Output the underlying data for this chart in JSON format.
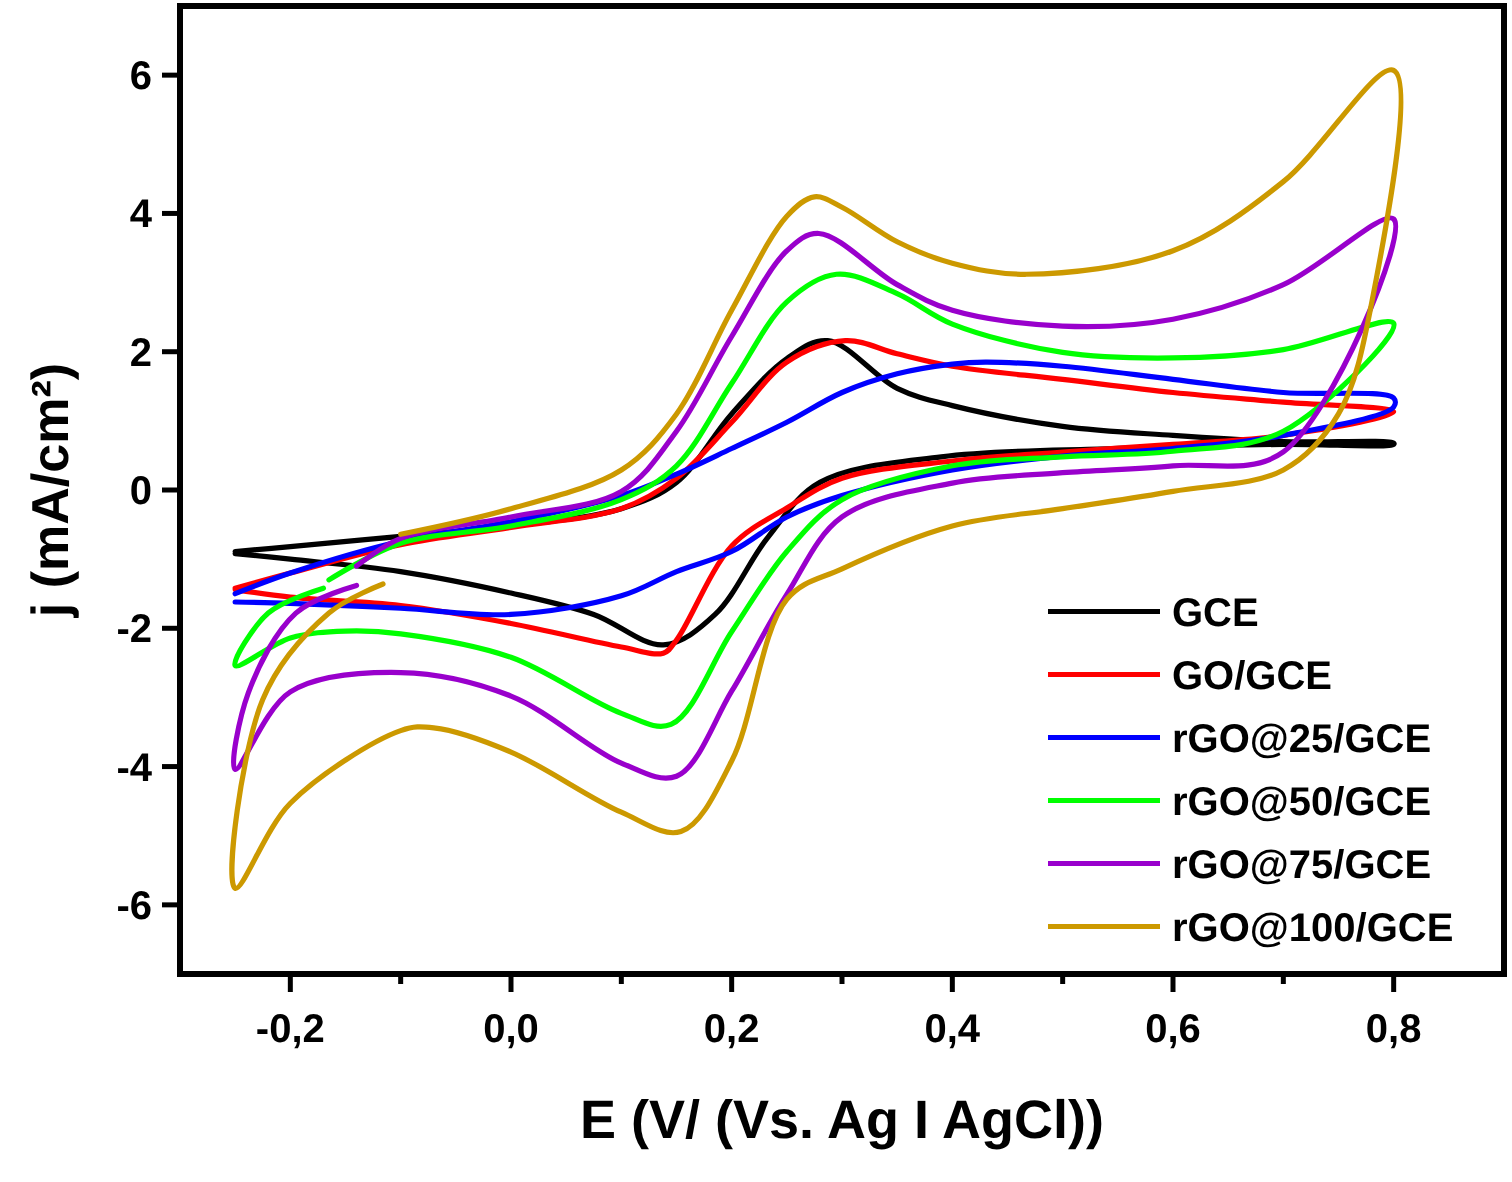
{
  "chart_data": {
    "type": "line",
    "xlabel": "E (V/ (Vs. Ag I AgCl))",
    "ylabel": "j (mA/cm²)",
    "xlim": [
      -0.3,
      0.9
    ],
    "ylim": [
      -7,
      7
    ],
    "xticks": [
      {
        "value": -0.2,
        "label": "-0,2"
      },
      {
        "value": -0.1,
        "label": null
      },
      {
        "value": 0,
        "label": "0,0"
      },
      {
        "value": 0.1,
        "label": null
      },
      {
        "value": 0.2,
        "label": "0,2"
      },
      {
        "value": 0.3,
        "label": null
      },
      {
        "value": 0.4,
        "label": "0,4"
      },
      {
        "value": 0.5,
        "label": null
      },
      {
        "value": 0.6,
        "label": "0,6"
      },
      {
        "value": 0.7,
        "label": null
      },
      {
        "value": 0.8,
        "label": "0,8"
      }
    ],
    "yticks": [
      -6,
      -4,
      -2,
      0,
      2,
      4,
      6
    ],
    "grid": false,
    "legend": "bottom right",
    "line_style": "solid",
    "marker": "none",
    "series": [
      {
        "name": "GCE",
        "color": "#000000",
        "x": [
          -0.25,
          -0.2,
          -0.1,
          0,
          0.1,
          0.15,
          0.2,
          0.25,
          0.287,
          0.35,
          0.4,
          0.5,
          0.6,
          0.7,
          0.8,
          0.8,
          0.7,
          0.545,
          0.39,
          0.28,
          0.233,
          0.185,
          0.138,
          0.075,
          0,
          -0.1,
          -0.2,
          -0.25
        ],
        "values": [
          -0.89,
          -0.82,
          -0.67,
          -0.52,
          -0.27,
          0.11,
          1.1,
          1.9,
          2.16,
          1.47,
          1.22,
          0.92,
          0.79,
          0.7,
          0.68,
          0.66,
          0.66,
          0.6,
          0.48,
          0.11,
          -0.68,
          -1.8,
          -2.24,
          -1.8,
          -1.49,
          -1.18,
          -1.0,
          -0.92
        ]
      },
      {
        "name": "GO/GCE",
        "color": "#ff0000",
        "x": [
          -0.25,
          -0.2,
          -0.1,
          0,
          0.1,
          0.15,
          0.2,
          0.25,
          0.303,
          0.35,
          0.4,
          0.5,
          0.6,
          0.7,
          0.8,
          0.7,
          0.6,
          0.5,
          0.4,
          0.3,
          0.25,
          0.2,
          0.15,
          0.138,
          0.1,
          0,
          -0.1,
          -0.2,
          -0.25
        ],
        "values": [
          -1.42,
          -1.2,
          -0.79,
          -0.54,
          -0.27,
          0.17,
          0.98,
          1.85,
          2.16,
          1.97,
          1.79,
          1.6,
          1.41,
          1.27,
          1.13,
          0.79,
          0.66,
          0.55,
          0.42,
          0.17,
          -0.26,
          -0.81,
          -2.17,
          -2.36,
          -2.27,
          -1.93,
          -1.67,
          -1.55,
          -1.44
        ]
      },
      {
        "name": "rGO@25/GCE",
        "color": "#0000ff",
        "x": [
          -0.25,
          -0.2,
          -0.1,
          0,
          0.1,
          0.15,
          0.2,
          0.25,
          0.3,
          0.35,
          0.4,
          0.43,
          0.5,
          0.6,
          0.7,
          0.8,
          0.8,
          0.7,
          0.6,
          0.5,
          0.4,
          0.3,
          0.25,
          0.2,
          0.15,
          0.1,
          0,
          -0.1,
          -0.2,
          -0.25
        ],
        "values": [
          -1.5,
          -1.2,
          -0.74,
          -0.46,
          -0.08,
          0.23,
          0.6,
          0.98,
          1.41,
          1.68,
          1.82,
          1.85,
          1.79,
          1.6,
          1.41,
          1.33,
          1.2,
          0.79,
          0.6,
          0.49,
          0.29,
          -0.08,
          -0.39,
          -0.89,
          -1.18,
          -1.53,
          -1.8,
          -1.71,
          -1.64,
          -1.62
        ]
      },
      {
        "name": "rGO@50/GCE",
        "color": "#00ff00",
        "x": [
          -0.165,
          -0.1,
          0,
          0.1,
          0.15,
          0.2,
          0.25,
          0.295,
          0.35,
          0.4,
          0.5,
          0.6,
          0.7,
          0.8,
          0.7,
          0.6,
          0.5,
          0.4,
          0.3,
          0.25,
          0.2,
          0.145,
          0.1,
          0,
          -0.1,
          -0.15,
          -0.2,
          -0.25,
          -0.22,
          -0.17
        ],
        "values": [
          -1.3,
          -0.77,
          -0.52,
          -0.14,
          0.35,
          1.54,
          2.72,
          3.12,
          2.84,
          2.4,
          1.99,
          1.91,
          2.03,
          2.41,
          0.85,
          0.56,
          0.48,
          0.35,
          -0.14,
          -0.89,
          -2.05,
          -3.39,
          -3.23,
          -2.42,
          -2.08,
          -2.04,
          -2.14,
          -2.54,
          -1.78,
          -1.42
        ]
      },
      {
        "name": "rGO@75/GCE",
        "color": "#9900cc",
        "x": [
          -0.14,
          -0.1,
          0,
          0.1,
          0.15,
          0.2,
          0.25,
          0.279,
          0.35,
          0.4,
          0.5,
          0.6,
          0.7,
          0.8,
          0.7,
          0.6,
          0.5,
          0.4,
          0.3,
          0.25,
          0.2,
          0.15,
          0.1,
          0,
          -0.1,
          -0.2,
          -0.25,
          -0.238,
          -0.195,
          -0.14
        ],
        "values": [
          -1.1,
          -0.7,
          -0.39,
          -0.02,
          0.85,
          2.22,
          3.46,
          3.71,
          2.97,
          2.6,
          2.37,
          2.47,
          2.97,
          3.92,
          0.55,
          0.35,
          0.25,
          0.1,
          -0.39,
          -1.51,
          -2.91,
          -4.14,
          -3.95,
          -2.98,
          -2.64,
          -2.92,
          -4.04,
          -2.93,
          -1.78,
          -1.38
        ]
      },
      {
        "name": "rGO@100/GCE",
        "color": "#cc9900",
        "x": [
          -0.1,
          0,
          0.1,
          0.15,
          0.2,
          0.25,
          0.275,
          0.3,
          0.35,
          0.4,
          0.467,
          0.6,
          0.7,
          0.8,
          0.78,
          0.75,
          0.7,
          0.6,
          0.5,
          0.4,
          0.3,
          0.25,
          0.2,
          0.154,
          0.1,
          0,
          -0.07,
          -0.1,
          -0.2,
          -0.25,
          -0.225,
          -0.165,
          -0.116
        ],
        "values": [
          -0.64,
          -0.27,
          0.29,
          1.1,
          2.6,
          3.96,
          4.24,
          4.09,
          3.59,
          3.28,
          3.12,
          3.46,
          4.46,
          6.07,
          2.7,
          1.1,
          0.29,
          -0.02,
          -0.27,
          -0.52,
          -1.14,
          -1.58,
          -3.92,
          -4.94,
          -4.66,
          -3.79,
          -3.44,
          -3.48,
          -4.53,
          -5.76,
          -3.03,
          -1.78,
          -1.36
        ]
      }
    ]
  }
}
